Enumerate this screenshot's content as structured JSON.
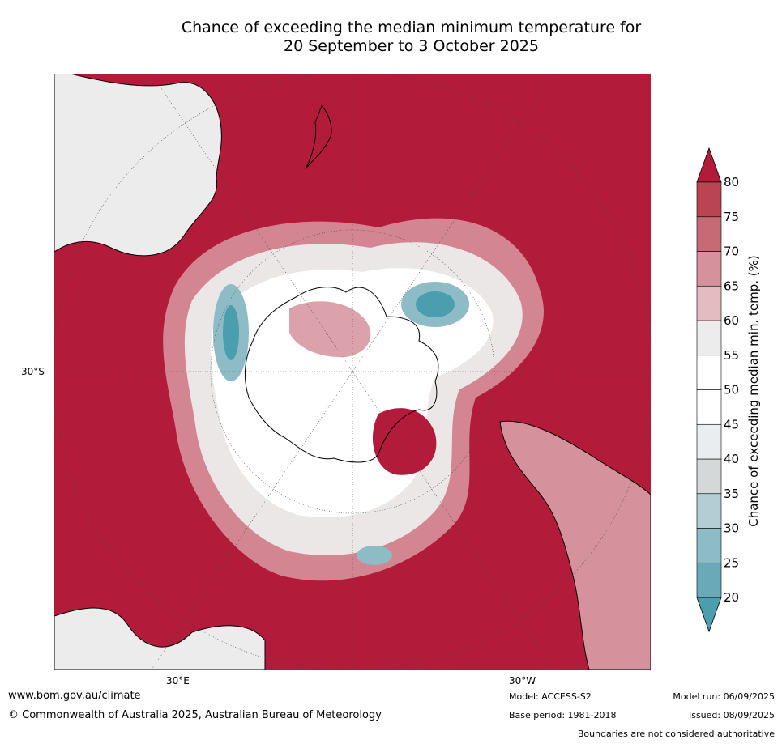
{
  "title": {
    "line1": "Chance of exceeding the median minimum temperature for",
    "line2": "20 September to 3 October 2025"
  },
  "map": {
    "ocean_color": "#b31b3a",
    "land_outline_color": "#000000",
    "lat_label": "30°S",
    "lon_labels": [
      "30°E",
      "30°W"
    ]
  },
  "colorbar": {
    "label": "Chance of exceeding median min. temp. (%)",
    "ticks": [
      "20",
      "25",
      "30",
      "35",
      "40",
      "45",
      "50",
      "55",
      "60",
      "65",
      "70",
      "75",
      "80"
    ],
    "colors": [
      "#4a9eae",
      "#6aaab8",
      "#8dbcc6",
      "#b2ced3",
      "#d4d8d9",
      "#eaedef",
      "#ffffff",
      "#ffffff",
      "#ececec",
      "#e4bcc0",
      "#d6929c",
      "#c76a76",
      "#ba4452",
      "#b31b3a"
    ]
  },
  "footer": {
    "url": "www.bom.gov.au/climate",
    "copyright": "© Commonwealth of Australia 2025, Australian Bureau of Meteorology",
    "model": "Model: ACCESS-S2",
    "base_period": "Base period: 1981-2018",
    "model_run": "Model run: 06/09/2025",
    "issued": "Issued: 08/09/2025",
    "disclaimer": "Boundaries are not considered authoritative"
  }
}
